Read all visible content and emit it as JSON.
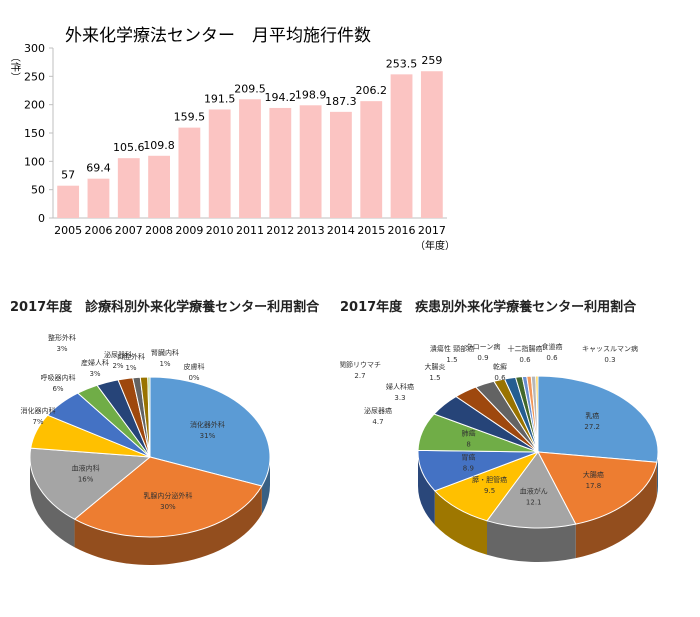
{
  "chart_data": [
    {
      "type": "bar",
      "title": "外来化学療法センター　月平均施行件数",
      "ylabel": "（件）",
      "xlabel": "（年度）",
      "ylim": [
        0,
        300
      ],
      "yticks": [
        0,
        50,
        100,
        150,
        200,
        250,
        300
      ],
      "grid": false,
      "categories": [
        "2005",
        "2006",
        "2007",
        "2008",
        "2009",
        "2010",
        "2011",
        "2012",
        "2013",
        "2014",
        "2015",
        "2016",
        "2017"
      ],
      "values": [
        57,
        69.4,
        105.6,
        109.8,
        159.5,
        191.5,
        209.5,
        194.2,
        198.9,
        187.3,
        206.2,
        253.5,
        259
      ],
      "value_labels": [
        "57",
        "69.4",
        "105.6",
        "109.8",
        "159.5",
        "191.5",
        "209.5",
        "194.2",
        "198.9",
        "187.3",
        "206.2",
        "253.5",
        "259"
      ],
      "color": "#fbc4c2"
    },
    {
      "type": "pie",
      "title": "2017年度　診療科別外来化学療養センター利用割合",
      "slices": [
        {
          "label": "消化器外科",
          "value": 31,
          "text": "31%",
          "color": "#5b9bd5"
        },
        {
          "label": "乳腺内分泌外科",
          "value": 30,
          "text": "30%",
          "color": "#ed7d31"
        },
        {
          "label": "血液内科",
          "value": 16,
          "text": "16%",
          "color": "#a5a5a5"
        },
        {
          "label": "消化器内科",
          "value": 7,
          "text": "7%",
          "color": "#ffc000"
        },
        {
          "label": "呼吸器内科",
          "value": 6,
          "text": "6%",
          "color": "#4472c4"
        },
        {
          "label": "整形外科",
          "value": 3,
          "text": "3%",
          "color": "#70ad47"
        },
        {
          "label": "産婦人科",
          "value": 3,
          "text": "3%",
          "color": "#264478"
        },
        {
          "label": "泌尿器科",
          "value": 2,
          "text": "2%",
          "color": "#9e480e"
        },
        {
          "label": "口腔外科",
          "value": 1,
          "text": "1%",
          "color": "#636363"
        },
        {
          "label": "腎臓内科",
          "value": 1,
          "text": "1%",
          "color": "#997300"
        },
        {
          "label": "皮膚科",
          "value": 0.3,
          "text": "0%",
          "color": "#a9d18e"
        }
      ]
    },
    {
      "type": "pie",
      "title": "2017年度　疾患別外来化学療養センター利用割合",
      "slices": [
        {
          "label": "乳癌",
          "value": 27.2,
          "text": "27.2",
          "color": "#5b9bd5"
        },
        {
          "label": "大腸癌",
          "value": 17.8,
          "text": "17.8",
          "color": "#ed7d31"
        },
        {
          "label": "血液がん",
          "value": 12.1,
          "text": "12.1",
          "color": "#a5a5a5"
        },
        {
          "label": "膵・胆管癌",
          "value": 9.5,
          "text": "9.5",
          "color": "#ffc000"
        },
        {
          "label": "胃癌",
          "value": 8.9,
          "text": "8.9",
          "color": "#4472c4"
        },
        {
          "label": "肺癌",
          "value": 8,
          "text": "8",
          "color": "#70ad47"
        },
        {
          "label": "泌尿器癌",
          "value": 4.7,
          "text": "4.7",
          "color": "#264478"
        },
        {
          "label": "婦人科癌",
          "value": 3.3,
          "text": "3.3",
          "color": "#9e480e"
        },
        {
          "label": "関節リウマチ",
          "value": 2.7,
          "text": "2.7",
          "color": "#636363"
        },
        {
          "label": "大腸炎",
          "value": 1.5,
          "text": "1.5",
          "color": "#997300"
        },
        {
          "label": "潰瘍性 頸部癌",
          "value": 1.5,
          "text": "1.5",
          "color": "#255e91"
        },
        {
          "label": "クローン病",
          "value": 0.9,
          "text": "0.9",
          "color": "#43682b"
        },
        {
          "label": "乾癬",
          "value": 0.6,
          "text": "0.6",
          "color": "#698ed0"
        },
        {
          "label": "十二指腸癌",
          "value": 0.6,
          "text": "0.6",
          "color": "#f1975a"
        },
        {
          "label": "食道癌",
          "value": 0.6,
          "text": "0.6",
          "color": "#b7b7b7"
        },
        {
          "label": "キャッスルマン病",
          "value": 0.3,
          "text": "0.3",
          "color": "#ffcd33"
        }
      ]
    }
  ]
}
